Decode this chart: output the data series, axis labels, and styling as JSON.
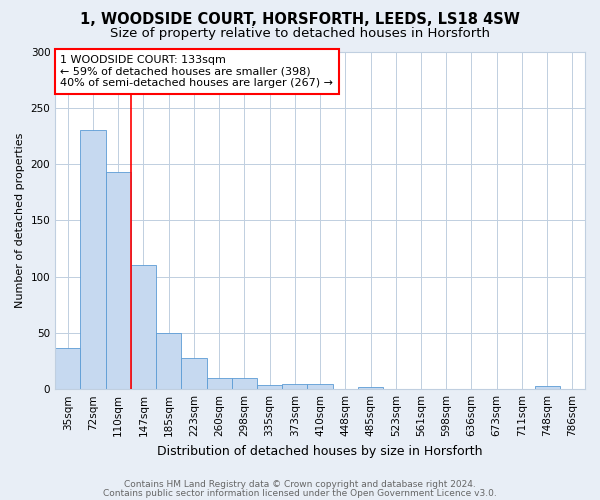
{
  "title1": "1, WOODSIDE COURT, HORSFORTH, LEEDS, LS18 4SW",
  "title2": "Size of property relative to detached houses in Horsforth",
  "xlabel": "Distribution of detached houses by size in Horsforth",
  "ylabel": "Number of detached properties",
  "categories": [
    "35sqm",
    "72sqm",
    "110sqm",
    "147sqm",
    "185sqm",
    "223sqm",
    "260sqm",
    "298sqm",
    "335sqm",
    "373sqm",
    "410sqm",
    "448sqm",
    "485sqm",
    "523sqm",
    "561sqm",
    "598sqm",
    "636sqm",
    "673sqm",
    "711sqm",
    "748sqm",
    "786sqm"
  ],
  "values": [
    37,
    230,
    193,
    110,
    50,
    28,
    10,
    10,
    4,
    5,
    5,
    0,
    2,
    0,
    0,
    0,
    0,
    0,
    0,
    3,
    0
  ],
  "bar_color": "#c6d9f0",
  "bar_edge_color": "#5b9bd5",
  "vline_color": "red",
  "vline_x": 2.5,
  "annotation_text": "1 WOODSIDE COURT: 133sqm\n← 59% of detached houses are smaller (398)\n40% of semi-detached houses are larger (267) →",
  "annotation_box_color": "white",
  "annotation_box_edge": "red",
  "ylim": [
    0,
    300
  ],
  "yticks": [
    0,
    50,
    100,
    150,
    200,
    250,
    300
  ],
  "footer1": "Contains HM Land Registry data © Crown copyright and database right 2024.",
  "footer2": "Contains public sector information licensed under the Open Government Licence v3.0.",
  "background_color": "#e8eef6",
  "plot_background": "white",
  "grid_color": "#c0cfe0",
  "title1_fontsize": 10.5,
  "title2_fontsize": 9.5,
  "xlabel_fontsize": 9,
  "ylabel_fontsize": 8,
  "tick_fontsize": 7.5,
  "annotation_fontsize": 8,
  "footer_fontsize": 6.5
}
